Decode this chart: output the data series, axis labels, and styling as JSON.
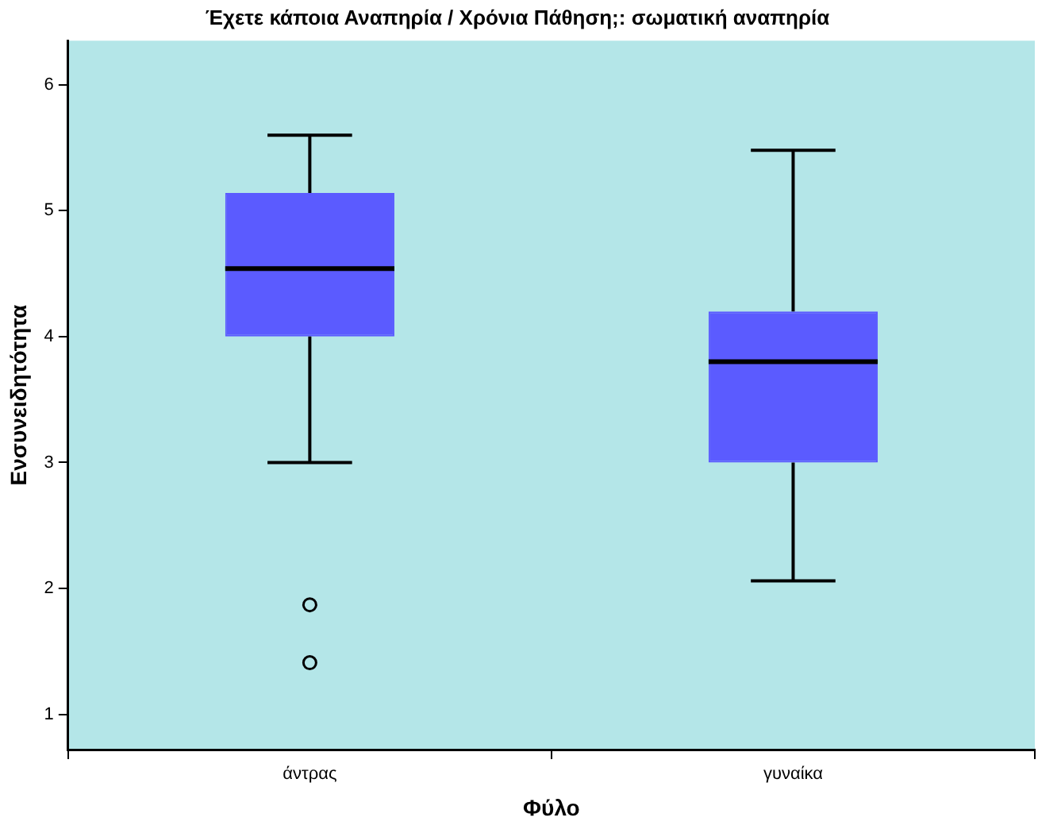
{
  "chart_data": {
    "type": "box",
    "title": "Έχετε κάποια Αναπηρία / Χρόνια Πάθηση;: σωματική αναπηρία",
    "xlabel": "Φύλο",
    "ylabel": "Ενσυνειδητότητα",
    "categories": [
      "άντρας",
      "γυναίκα"
    ],
    "boxes": [
      {
        "low": 3.0,
        "q1": 4.0,
        "median": 4.54,
        "q3": 5.14,
        "high": 5.6,
        "outliers": [
          1.87,
          1.41
        ]
      },
      {
        "low": 2.06,
        "q1": 3.0,
        "median": 3.8,
        "q3": 4.2,
        "high": 5.48
      }
    ],
    "color": "#5b5bff",
    "ylim": [
      0.72,
      6.35
    ],
    "yticks": [
      1,
      2,
      3,
      4,
      5,
      6
    ],
    "grid": false,
    "legend": false
  }
}
